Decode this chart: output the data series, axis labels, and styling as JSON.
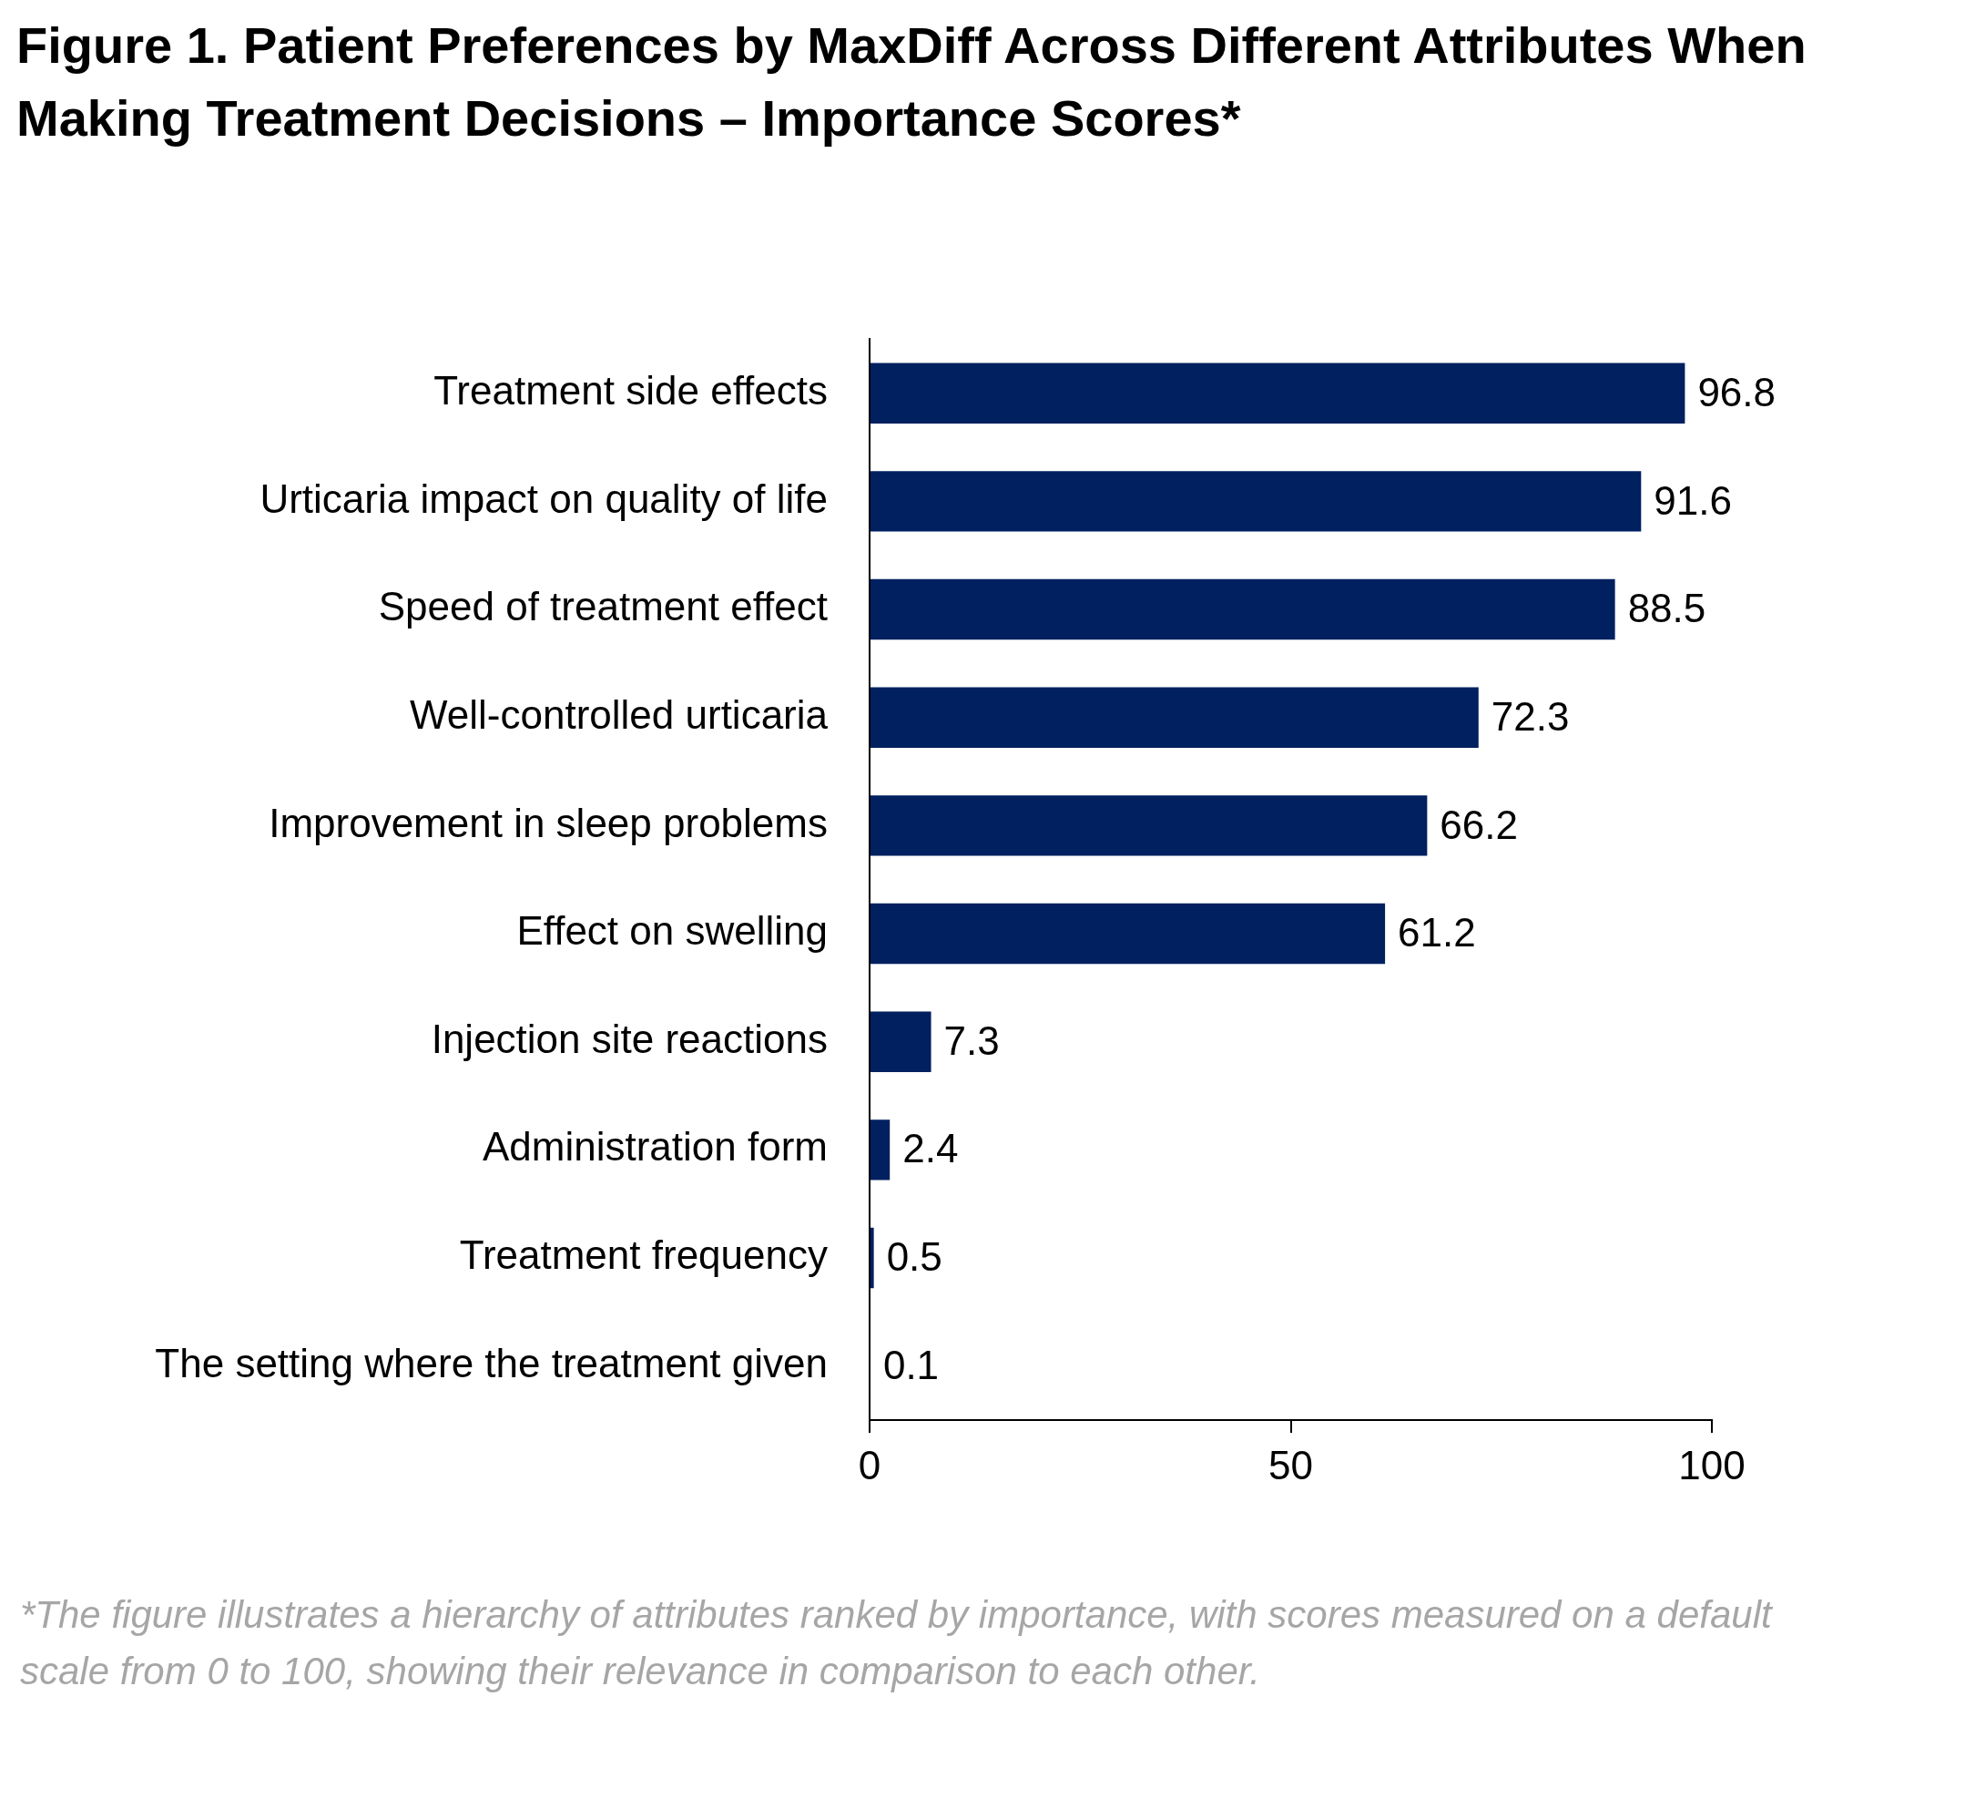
{
  "chart_data": {
    "type": "bar",
    "orientation": "horizontal",
    "title": "Figure 1. Patient Preferences by MaxDiff Across Different Attributes When Making Treatment Decisions – Importance Scores*",
    "categories": [
      "Treatment side effects",
      "Urticaria impact on quality of life",
      "Speed of treatment effect",
      "Well-controlled urticaria",
      "Improvement in sleep problems",
      "Effect on swelling",
      "Injection site reactions",
      "Administration form",
      "Treatment frequency",
      "The setting where the treatment given"
    ],
    "values": [
      96.8,
      91.6,
      88.5,
      72.3,
      66.2,
      61.2,
      7.3,
      2.4,
      0.5,
      0.1
    ],
    "color": "#002060",
    "xlim": [
      0,
      100
    ],
    "xticks": [
      0,
      50,
      100
    ],
    "data_labels": true,
    "grid": false,
    "legend": false,
    "annotations": [
      "*The figure illustrates a hierarchy of attributes ranked by importance, with scores measured on a default scale from 0 to 100, showing their relevance in comparison to each other."
    ]
  }
}
